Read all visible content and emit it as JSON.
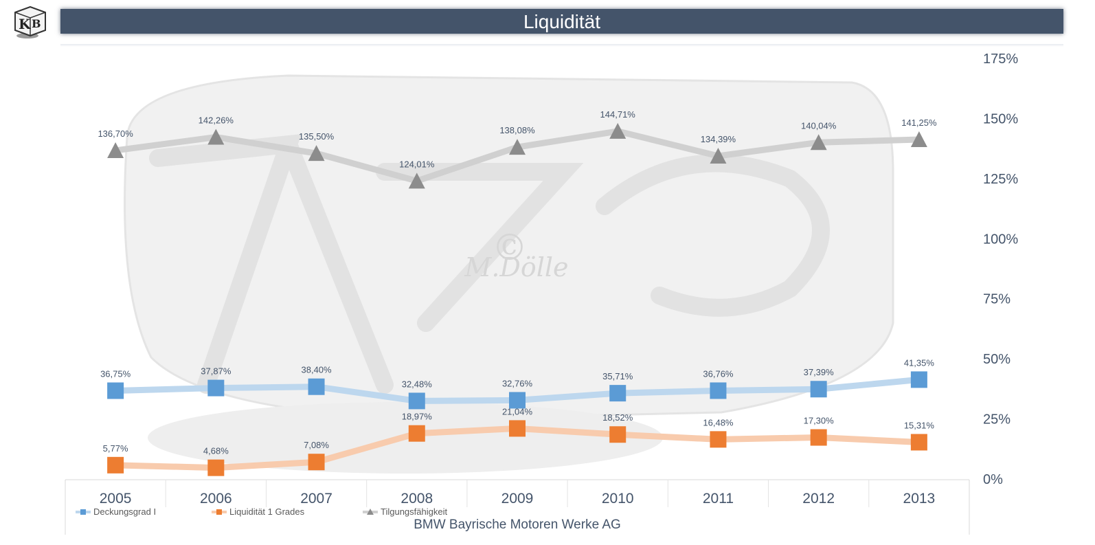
{
  "header": {
    "title": "Liquidität"
  },
  "caption": "BMW Bayrische Motoren Werke AG",
  "logo": {
    "icon": "kb-cube-logo",
    "text": "KB"
  },
  "watermark": {
    "text": "M.Dölle",
    "symbol": "©"
  },
  "colors": {
    "title_bar": "#44546a",
    "axis_text": "#44546a",
    "Deckungsgrad I": {
      "line": "#bdd7ee",
      "marker": "#5b9bd5"
    },
    "Liquidität 1 Grades": {
      "line": "#f8cbad",
      "marker": "#ed7d31"
    },
    "Tilgungsfähigkeit": {
      "line": "#d0d0d0",
      "marker": "#8c8c8c"
    }
  },
  "chart_data": {
    "type": "line",
    "categories": [
      "2005",
      "2006",
      "2007",
      "2008",
      "2009",
      "2010",
      "2011",
      "2012",
      "2013"
    ],
    "y_axis": {
      "position": "right",
      "ylim": [
        0,
        175
      ],
      "tick_labels": [
        "0%",
        "25%",
        "50%",
        "75%",
        "100%",
        "125%",
        "150%",
        "175%"
      ]
    },
    "grid": false,
    "legend_position": "bottom-left",
    "series": [
      {
        "name": "Deckungsgrad I",
        "marker": "square",
        "values": [
          36.75,
          37.87,
          38.4,
          32.48,
          32.76,
          35.71,
          36.76,
          37.39,
          41.35
        ],
        "labels": [
          "36,75%",
          "37,87%",
          "38,40%",
          "32,48%",
          "32,76%",
          "35,71%",
          "36,76%",
          "37,39%",
          "41,35%"
        ]
      },
      {
        "name": "Liquidität 1 Grades",
        "marker": "square",
        "values": [
          5.77,
          4.68,
          7.08,
          18.97,
          21.04,
          18.52,
          16.48,
          17.3,
          15.31
        ],
        "labels": [
          "5,77%",
          "4,68%",
          "7,08%",
          "18,97%",
          "21,04%",
          "18,52%",
          "16,48%",
          "17,30%",
          "15,31%"
        ]
      },
      {
        "name": "Tilgungsfähigkeit",
        "marker": "triangle",
        "values": [
          136.7,
          142.26,
          135.5,
          124.01,
          138.08,
          144.71,
          134.39,
          140.04,
          141.25
        ],
        "labels": [
          "136,70%",
          "142,26%",
          "135,50%",
          "124,01%",
          "138,08%",
          "144,71%",
          "134,39%",
          "140,04%",
          "141,25%"
        ]
      }
    ]
  }
}
